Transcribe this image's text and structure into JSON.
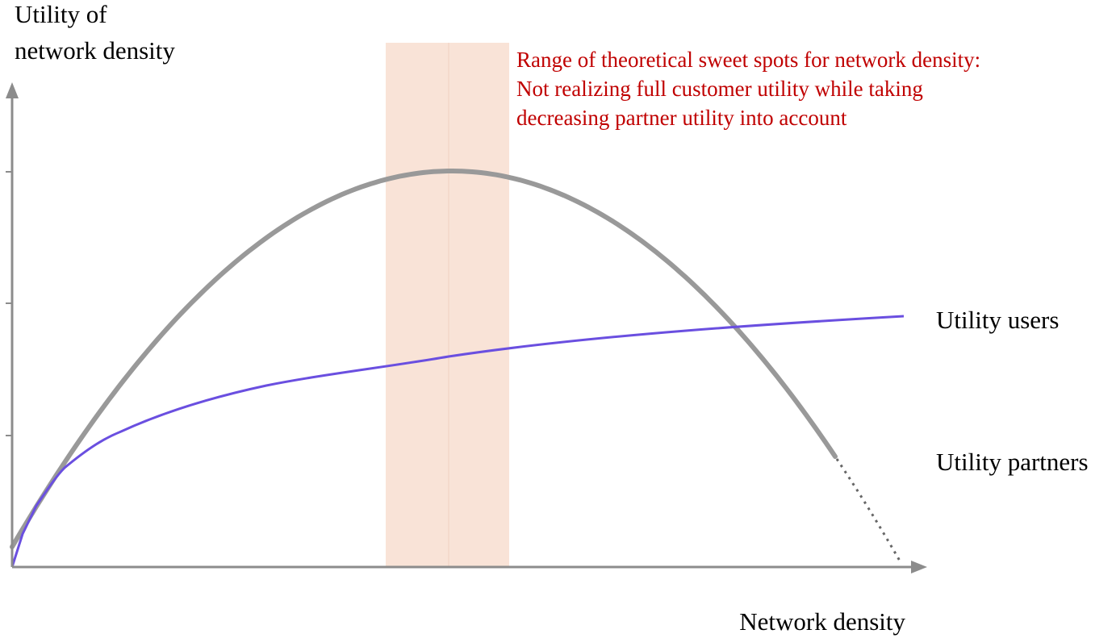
{
  "y_axis": {
    "label": [
      "Utility of",
      "network density"
    ]
  },
  "x_axis": {
    "label": "Network density"
  },
  "annotation": {
    "lines": [
      "Range of theoretical sweet spots for network density:",
      "Not realizing full customer utility while taking",
      "decreasing partner utility into account"
    ]
  },
  "curve_labels": [
    "Utility users",
    "Utility partners"
  ]
}
